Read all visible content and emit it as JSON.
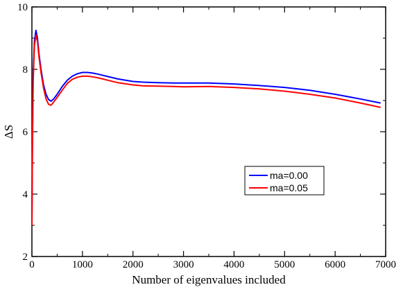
{
  "chart_data": {
    "type": "line",
    "xlabel": "Number of eigenvalues included",
    "ylabel": "ΔS",
    "xlim": [
      0,
      7000
    ],
    "ylim": [
      2,
      10
    ],
    "xticks": [
      0,
      1000,
      2000,
      3000,
      4000,
      5000,
      6000,
      7000
    ],
    "yticks": [
      2,
      4,
      6,
      8,
      10
    ],
    "grid": false,
    "legend_position": "center-right",
    "series": [
      {
        "name": "ma=0.00",
        "color": "#0000ff",
        "x": [
          0,
          10,
          25,
          50,
          80,
          110,
          140,
          180,
          230,
          280,
          330,
          380,
          430,
          500,
          600,
          700,
          800,
          900,
          1000,
          1100,
          1200,
          1300,
          1500,
          1700,
          2000,
          2200,
          2500,
          2800,
          3000,
          3500,
          4000,
          4500,
          5000,
          5500,
          6000,
          6500,
          6900
        ],
        "y": [
          3.0,
          5.5,
          7.8,
          8.9,
          9.25,
          9.0,
          8.5,
          8.0,
          7.5,
          7.2,
          7.03,
          6.98,
          7.05,
          7.2,
          7.45,
          7.65,
          7.78,
          7.86,
          7.9,
          7.9,
          7.88,
          7.85,
          7.77,
          7.69,
          7.61,
          7.59,
          7.57,
          7.56,
          7.56,
          7.56,
          7.53,
          7.48,
          7.42,
          7.33,
          7.2,
          7.05,
          6.92
        ]
      },
      {
        "name": "ma=0.05",
        "color": "#ff0000",
        "x": [
          0,
          10,
          25,
          50,
          80,
          110,
          140,
          180,
          230,
          280,
          330,
          380,
          430,
          500,
          600,
          700,
          800,
          900,
          1000,
          1100,
          1200,
          1300,
          1500,
          1700,
          2000,
          2200,
          2500,
          2800,
          3000,
          3500,
          4000,
          4500,
          5000,
          5500,
          6000,
          6500,
          6900
        ],
        "y": [
          3.0,
          5.4,
          7.6,
          8.75,
          9.1,
          8.9,
          8.4,
          7.9,
          7.4,
          7.05,
          6.88,
          6.85,
          6.95,
          7.1,
          7.33,
          7.55,
          7.68,
          7.75,
          7.78,
          7.78,
          7.76,
          7.73,
          7.65,
          7.57,
          7.5,
          7.47,
          7.46,
          7.45,
          7.44,
          7.45,
          7.42,
          7.37,
          7.3,
          7.2,
          7.08,
          6.92,
          6.78
        ]
      }
    ]
  }
}
